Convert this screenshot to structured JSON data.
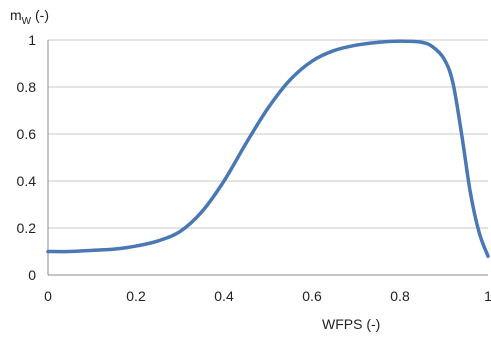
{
  "chart_data": {
    "type": "line",
    "xlabel": "WFPS (-)",
    "ylabel": {
      "main": "m",
      "sub": "W",
      "suffix": " (-)"
    },
    "xlim": [
      0,
      1
    ],
    "ylim": [
      0,
      1
    ],
    "x_ticks": [
      0,
      0.2,
      0.4,
      0.6,
      0.8,
      1
    ],
    "x_tick_labels": [
      "0",
      "0.2",
      "0.4",
      "0.6",
      "0.8",
      "1"
    ],
    "y_ticks": [
      0,
      0.2,
      0.4,
      0.6,
      0.8,
      1
    ],
    "y_tick_labels": [
      "0",
      "0.2",
      "0.4",
      "0.6",
      "0.8",
      "1"
    ],
    "grid": {
      "horizontal": true,
      "vertical": false
    },
    "legend": "none",
    "series": [
      {
        "color": "#4a78b5",
        "x": [
          0,
          0.05,
          0.1,
          0.15,
          0.2,
          0.25,
          0.3,
          0.35,
          0.4,
          0.45,
          0.5,
          0.55,
          0.6,
          0.65,
          0.7,
          0.75,
          0.8,
          0.85,
          0.875,
          0.9,
          0.92,
          0.94,
          0.96,
          0.98,
          1.0
        ],
        "y": [
          0.1,
          0.1,
          0.105,
          0.11,
          0.123,
          0.145,
          0.185,
          0.27,
          0.4,
          0.56,
          0.71,
          0.83,
          0.91,
          0.955,
          0.978,
          0.99,
          0.995,
          0.99,
          0.97,
          0.92,
          0.82,
          0.6,
          0.35,
          0.18,
          0.08
        ]
      }
    ]
  }
}
